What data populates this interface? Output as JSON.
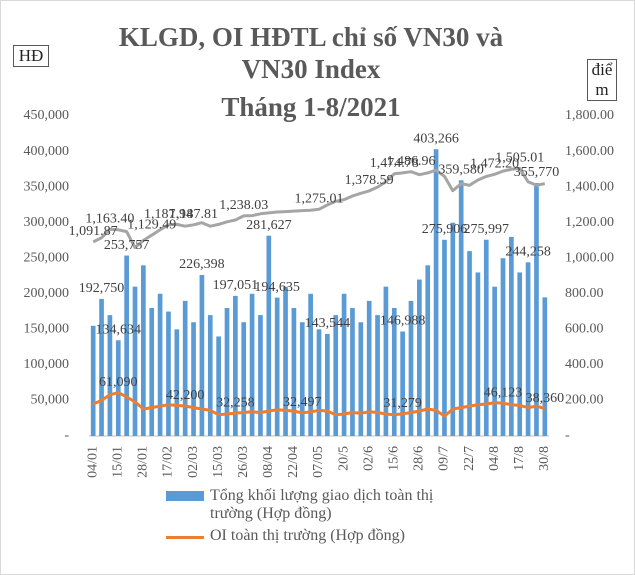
{
  "chart_data": {
    "type": "bar_line",
    "title": "KLGD, OI HĐTL chỉ số VN30 và VN30 Index",
    "subtitle": "Tháng 1-8/2021",
    "y_label": "HĐ",
    "y2_label": "điểm",
    "categories": [
      "04/01",
      null,
      null,
      "15/01",
      null,
      null,
      "28/01",
      null,
      null,
      "17/02",
      null,
      null,
      "02/03",
      null,
      null,
      "15/03",
      null,
      null,
      "26/03",
      null,
      null,
      "08/04",
      null,
      null,
      "22/04",
      null,
      null,
      "07/05",
      null,
      null,
      "20/5",
      null,
      null,
      "02/6",
      null,
      null,
      "15/6",
      null,
      null,
      "28/6",
      null,
      null,
      "09/7",
      null,
      null,
      "22/7",
      null,
      null,
      "04/8",
      null,
      null,
      "17/8",
      null,
      null,
      "30/8"
    ],
    "ylim": [
      0,
      450000
    ],
    "yticks": [
      {
        "value": 0,
        "label": "-"
      },
      {
        "value": 50000,
        "label": "50,000"
      },
      {
        "value": 100000,
        "label": "100,000"
      },
      {
        "value": 150000,
        "label": "150,000"
      },
      {
        "value": 200000,
        "label": "200,000"
      },
      {
        "value": 250000,
        "label": "250,000"
      },
      {
        "value": 300000,
        "label": "300,000"
      },
      {
        "value": 350000,
        "label": "350,000"
      },
      {
        "value": 400000,
        "label": "400,000"
      },
      {
        "value": 450000,
        "label": "450,000"
      }
    ],
    "y2lim": [
      0,
      1800
    ],
    "y2ticks": [
      {
        "value": 0,
        "label": "-"
      },
      {
        "value": 200,
        "label": "200.00"
      },
      {
        "value": 400,
        "label": "400.00"
      },
      {
        "value": 600,
        "label": "600.00"
      },
      {
        "value": 800,
        "label": "800.00"
      },
      {
        "value": 1000,
        "label": "1,000.00"
      },
      {
        "value": 1200,
        "label": "1,200.00"
      },
      {
        "value": 1400,
        "label": "1,400.00"
      },
      {
        "value": 1600,
        "label": "1,600.00"
      },
      {
        "value": 1800,
        "label": "1,800.00"
      }
    ],
    "series": [
      {
        "name": "Tổng khối lượng giao dịch toàn thị trường (Hợp đồng)",
        "kind": "bar",
        "color": "#5b9bd5",
        "values": [
          155000,
          192750,
          170000,
          134634,
          253757,
          210000,
          240000,
          180000,
          200000,
          175000,
          150000,
          190000,
          160000,
          226398,
          170000,
          140000,
          180000,
          197051,
          160000,
          200000,
          170000,
          281627,
          194635,
          210000,
          180000,
          160000,
          200000,
          150000,
          143544,
          170000,
          200000,
          180000,
          160000,
          190000,
          170000,
          210000,
          180000,
          146988,
          190000,
          220000,
          240000,
          403266,
          275906,
          300000,
          359580,
          260000,
          230000,
          275997,
          210000,
          250000,
          280000,
          230000,
          244258,
          355770,
          195000
        ],
        "value_labels": [
          null,
          "192,750",
          null,
          "134,634",
          "253,757",
          null,
          null,
          null,
          null,
          null,
          null,
          null,
          null,
          "226,398",
          null,
          null,
          null,
          "197,051",
          null,
          null,
          null,
          "281,627",
          "194,635",
          null,
          null,
          null,
          null,
          null,
          "143,544",
          null,
          null,
          null,
          null,
          null,
          null,
          null,
          null,
          "146,988",
          null,
          null,
          null,
          "403,266",
          "275,906",
          null,
          "359,580",
          null,
          null,
          "275,997",
          null,
          null,
          null,
          null,
          "244,258",
          "355,770",
          null
        ]
      },
      {
        "name": "OI toàn thị trường (Hợp đồng)",
        "kind": "line",
        "color": "#ed7d31",
        "values": [
          45000,
          50000,
          58000,
          61090,
          55000,
          48000,
          38000,
          40000,
          42000,
          44000,
          43000,
          42200,
          40000,
          38000,
          36000,
          30000,
          31000,
          32258,
          33000,
          34000,
          33000,
          35000,
          37000,
          36000,
          35000,
          32497,
          34000,
          36000,
          35000,
          30000,
          31000,
          33000,
          32000,
          34000,
          33000,
          31000,
          30000,
          31279,
          33000,
          35000,
          38000,
          36000,
          28000,
          38000,
          40000,
          42000,
          44000,
          45000,
          47000,
          46123,
          44000,
          43000,
          40000,
          42000,
          38360
        ],
        "value_labels": [
          null,
          null,
          null,
          "61,090",
          null,
          null,
          null,
          null,
          null,
          null,
          null,
          "42,200",
          null,
          null,
          null,
          null,
          null,
          "32,258",
          null,
          null,
          null,
          null,
          null,
          null,
          null,
          "32,497",
          null,
          null,
          null,
          null,
          null,
          null,
          null,
          null,
          null,
          null,
          null,
          "31,279",
          null,
          null,
          null,
          null,
          null,
          null,
          null,
          null,
          null,
          null,
          null,
          "46,123",
          null,
          null,
          null,
          null,
          "38,360"
        ]
      },
      {
        "kind": "line",
        "axis": "y2",
        "color": "#a5a5a5",
        "values": [
          1091.87,
          1115,
          1163.4,
          1160,
          1150,
          1060,
          1100,
          1129.49,
          1160,
          1187.94,
          1190,
          1180,
          1187.81,
          1200,
          1180,
          1190,
          1205,
          1215,
          1238.03,
          1240,
          1250,
          1255,
          1260,
          1262,
          1265,
          1268,
          1270,
          1275.01,
          1300,
          1320,
          1330,
          1350,
          1365,
          1378.59,
          1400,
          1430,
          1474.78,
          1480,
          1486.96,
          1470,
          1480,
          1495,
          1460,
          1380,
          1420,
          1410,
          1440,
          1460,
          1472.2,
          1490,
          1500,
          1505.01,
          1430,
          1410,
          1420
        ],
        "value_labels": [
          "1,091.87",
          null,
          "1,163.40",
          null,
          null,
          null,
          null,
          "1,129.49",
          null,
          "1,187.94",
          null,
          null,
          "1,187.81",
          null,
          null,
          null,
          null,
          null,
          "1,238.03",
          null,
          null,
          null,
          null,
          null,
          null,
          null,
          null,
          "1,275.01",
          null,
          null,
          null,
          null,
          null,
          "1,378.59",
          null,
          null,
          "1,474.78",
          null,
          "1,486.96",
          null,
          null,
          null,
          null,
          null,
          null,
          null,
          null,
          null,
          "1,472.20",
          null,
          null,
          "1,505.01",
          null,
          null,
          null
        ]
      }
    ]
  }
}
